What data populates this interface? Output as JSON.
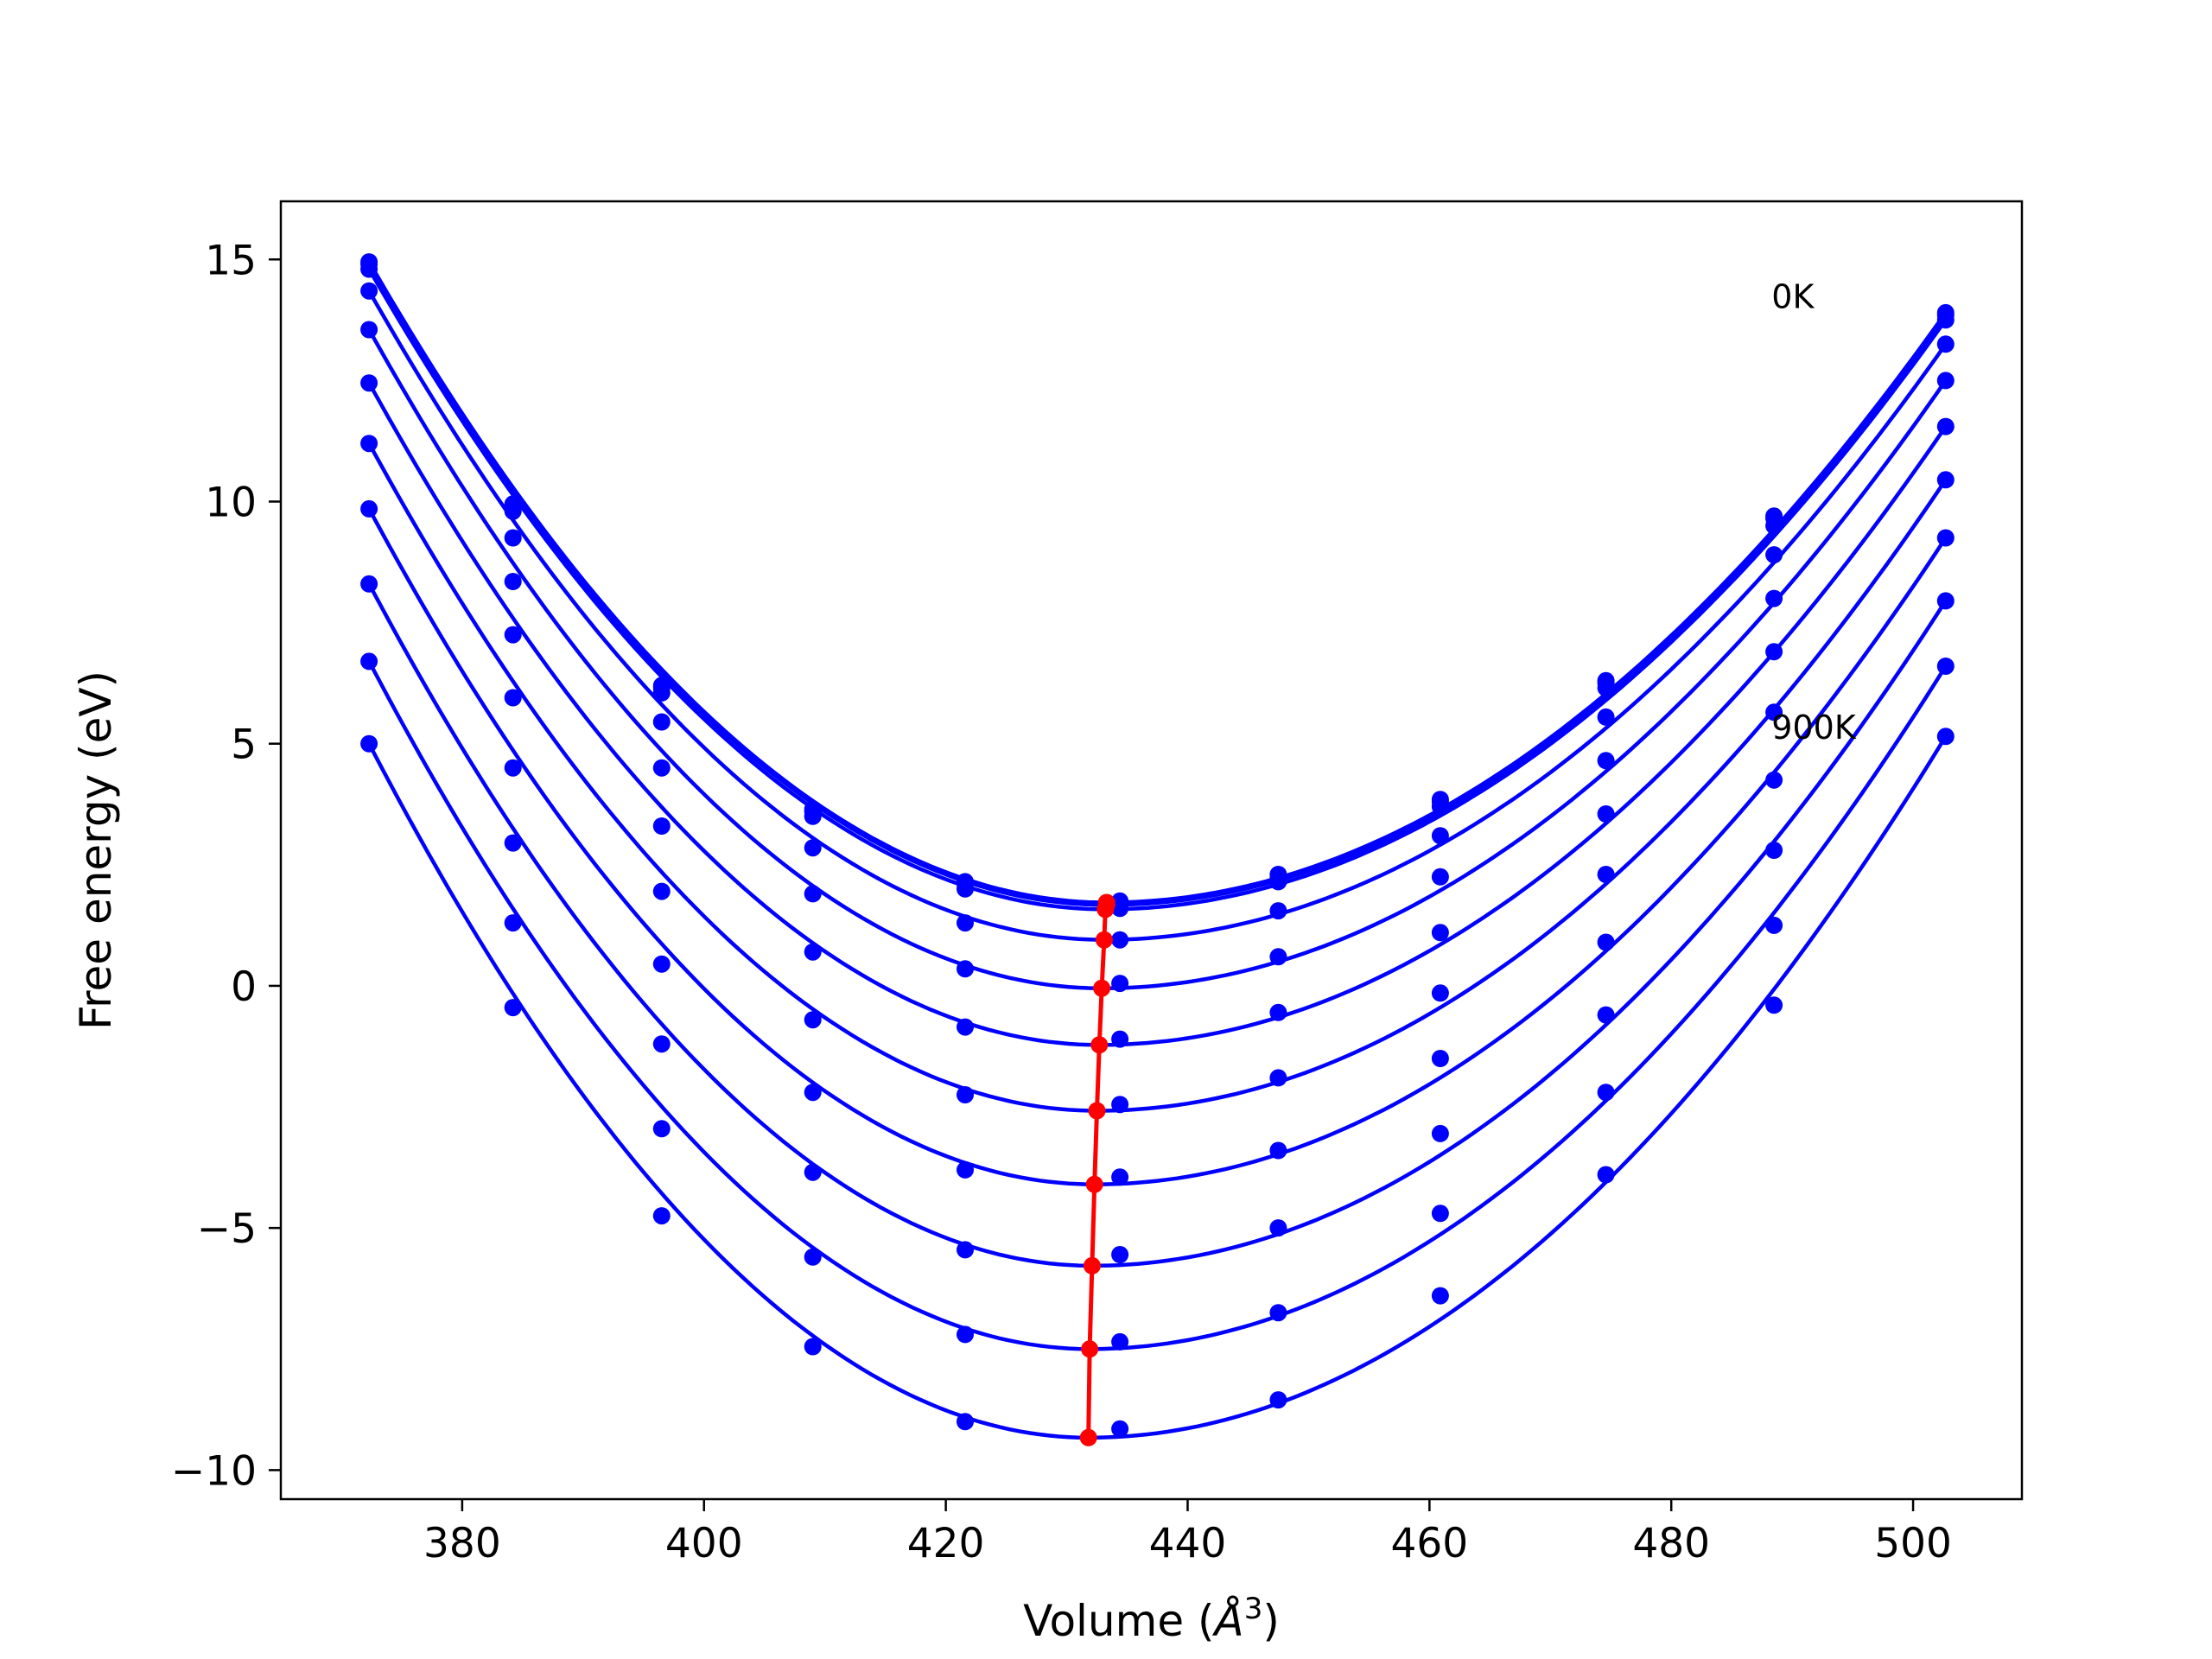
{
  "chart_data": {
    "type": "line",
    "xlabel_main": "Volume (",
    "xlabel_sym": "Å",
    "xlabel_exp": "3",
    "xlabel_end": ")",
    "ylabel": "Free energy (eV)",
    "xlim": [
      365,
      509
    ],
    "ylim": [
      -10.6,
      16.2
    ],
    "xticks": [
      380,
      400,
      420,
      440,
      460,
      480,
      500
    ],
    "xtick_labels": [
      "380",
      "400",
      "420",
      "440",
      "460",
      "480",
      "500"
    ],
    "yticks": [
      15,
      10,
      5,
      0,
      -5,
      -10
    ],
    "ytick_labels": [
      "15",
      "10",
      "5",
      "0",
      "−5",
      "−10"
    ],
    "grid": false,
    "line_color": "#0000ff",
    "min_color": "#ff0000",
    "annotations": [
      {
        "text": "0K",
        "x": 488.3,
        "y": 14.0
      },
      {
        "text": "900K",
        "x": 488.3,
        "y": 5.1
      }
    ],
    "volumes": [
      372.3,
      384.2,
      396.5,
      409.0,
      421.6,
      434.4,
      447.5,
      460.9,
      474.6,
      488.5,
      502.7
    ],
    "series": [
      {
        "values": [
          14.95,
          9.95,
          6.2,
          3.65,
          2.15,
          1.75,
          2.3,
          3.85,
          6.3,
          9.7,
          13.9
        ],
        "min_x": 433.3,
        "min_y": 1.72
      },
      {
        "values": [
          14.9,
          9.9,
          6.15,
          3.6,
          2.1,
          1.7,
          2.25,
          3.8,
          6.25,
          9.65,
          13.85
        ],
        "min_x": 433.3,
        "min_y": 1.67
      },
      {
        "values": [
          14.8,
          9.8,
          6.05,
          3.5,
          2.0,
          1.6,
          2.15,
          3.7,
          6.15,
          9.5,
          13.75
        ],
        "min_x": 433.2,
        "min_y": 1.58
      },
      {
        "values": [
          14.35,
          9.25,
          5.45,
          2.85,
          1.3,
          0.95,
          1.55,
          3.1,
          5.55,
          8.9,
          13.25
        ],
        "min_x": 433.1,
        "min_y": 0.95
      },
      {
        "values": [
          13.55,
          8.35,
          4.5,
          1.9,
          0.35,
          0.05,
          0.6,
          2.25,
          4.65,
          8.0,
          12.5
        ],
        "min_x": 432.9,
        "min_y": -0.05
      },
      {
        "values": [
          12.45,
          7.25,
          3.3,
          0.7,
          -0.85,
          -1.1,
          -0.55,
          1.1,
          3.55,
          6.9,
          11.55
        ],
        "min_x": 432.7,
        "min_y": -1.22
      },
      {
        "values": [
          11.2,
          5.95,
          1.95,
          -0.7,
          -2.25,
          -2.45,
          -1.9,
          -0.15,
          2.3,
          5.65,
          10.45
        ],
        "min_x": 432.5,
        "min_y": -2.58
      },
      {
        "values": [
          9.85,
          4.5,
          0.45,
          -2.2,
          -3.8,
          -3.95,
          -3.4,
          -1.5,
          0.9,
          4.25,
          9.25
        ],
        "min_x": 432.3,
        "min_y": -4.1
      },
      {
        "values": [
          8.3,
          2.95,
          -1.2,
          -3.85,
          -5.45,
          -5.55,
          -5.0,
          -3.05,
          -0.6,
          2.8,
          7.95
        ],
        "min_x": 432.1,
        "min_y": -5.78
      },
      {
        "values": [
          6.7,
          1.3,
          -2.95,
          -5.6,
          -7.2,
          -7.35,
          -6.75,
          -4.7,
          -2.2,
          1.25,
          6.6
        ],
        "min_x": 431.9,
        "min_y": -7.5
      },
      {
        "values": [
          5.0,
          -0.45,
          -4.75,
          -7.45,
          -9.0,
          -9.15,
          -8.55,
          -6.4,
          -3.9,
          -0.4,
          5.15
        ],
        "min_x": 431.8,
        "min_y": -9.33
      }
    ]
  }
}
